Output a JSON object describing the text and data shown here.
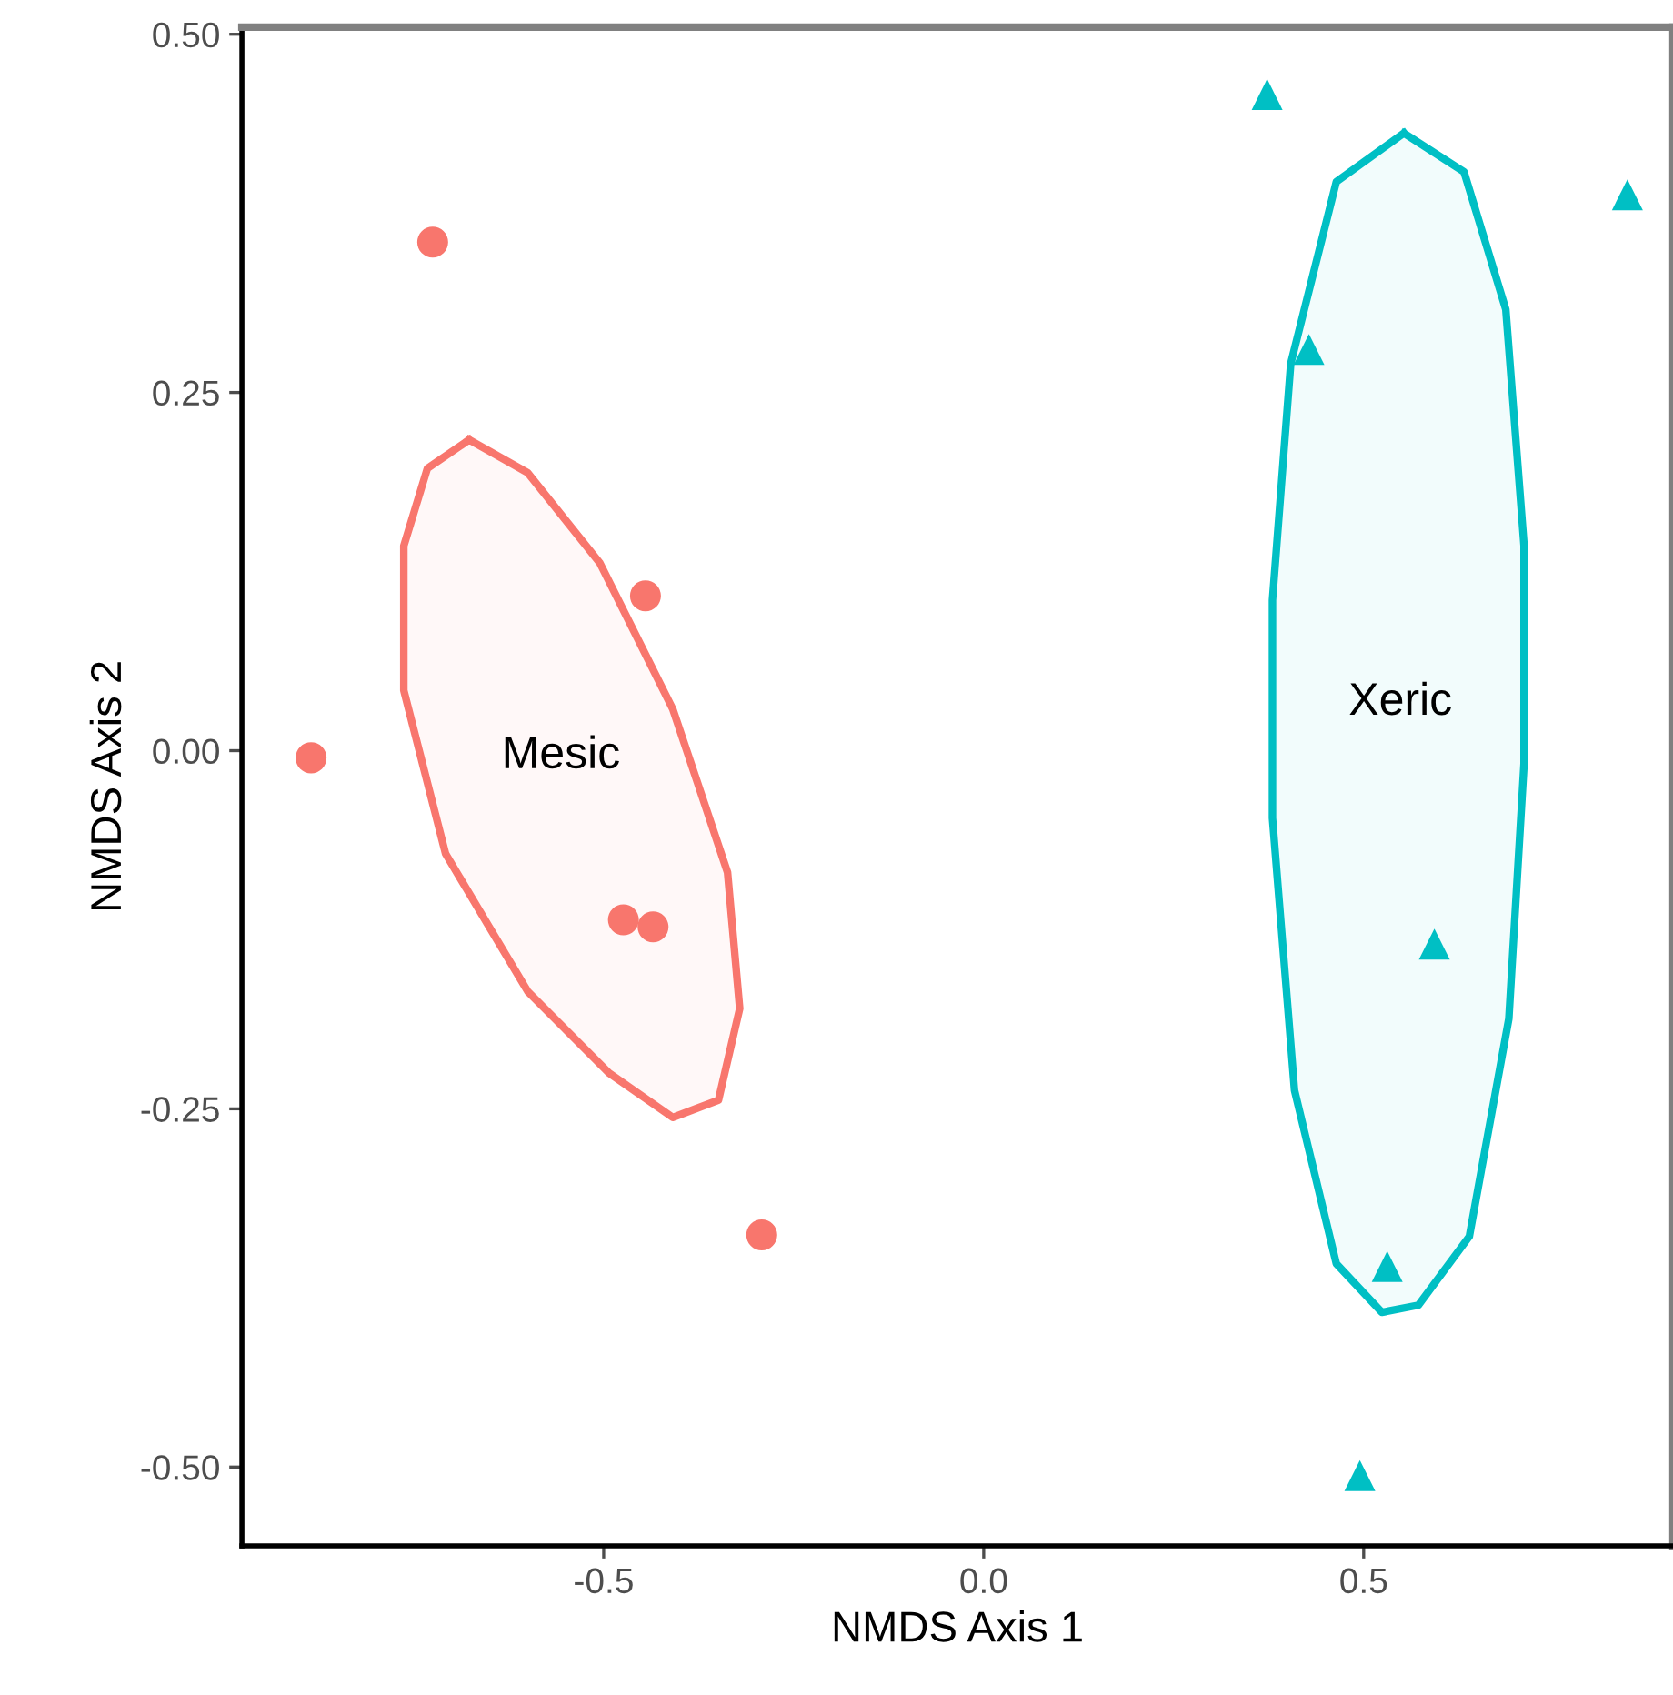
{
  "chart_data": {
    "type": "scatter",
    "xlabel": "NMDS Axis 1",
    "ylabel": "NMDS Axis 2",
    "xlim": [
      -0.976,
      0.907
    ],
    "ylim": [
      -0.555,
      0.505
    ],
    "xticks": [
      {
        "value": -0.5,
        "label": "-0.5"
      },
      {
        "value": 0.0,
        "label": "0.0"
      },
      {
        "value": 0.5,
        "label": "0.5"
      }
    ],
    "yticks": [
      {
        "value": -0.5,
        "label": "-0.50"
      },
      {
        "value": -0.25,
        "label": "-0.25"
      },
      {
        "value": 0.0,
        "label": "0.00"
      },
      {
        "value": 0.25,
        "label": "0.25"
      },
      {
        "value": 0.5,
        "label": "0.50"
      }
    ],
    "grid": false,
    "legend": false,
    "series": [
      {
        "marker": "circle",
        "color": "#f8766d",
        "x": [
          -0.725,
          -0.885,
          -0.445,
          -0.474,
          -0.435,
          -0.292
        ],
        "values": [
          0.355,
          -0.005,
          0.108,
          -0.118,
          -0.123,
          -0.338
        ]
      },
      {
        "marker": "triangle",
        "color": "#00bfc4",
        "x": [
          0.373,
          0.847,
          0.428,
          0.593,
          0.531,
          0.495
        ],
        "values": [
          0.458,
          0.388,
          0.28,
          -0.135,
          -0.36,
          -0.506
        ]
      },
      {
        "type": "area",
        "name": "Mesic",
        "color": "#f8766d",
        "x": [
          -0.677,
          -0.6,
          -0.505,
          -0.409,
          -0.337,
          -0.321,
          -0.349,
          -0.409,
          -0.493,
          -0.6,
          -0.708,
          -0.763,
          -0.763,
          -0.732,
          -0.677
        ],
        "values": [
          0.217,
          0.194,
          0.131,
          0.029,
          -0.085,
          -0.18,
          -0.244,
          -0.256,
          -0.225,
          -0.168,
          -0.072,
          0.042,
          0.143,
          0.197,
          0.217
        ]
      },
      {
        "type": "area",
        "name": "Xeric",
        "color": "#00bfc4",
        "x": [
          0.553,
          0.632,
          0.687,
          0.711,
          0.711,
          0.691,
          0.639,
          0.572,
          0.524,
          0.464,
          0.409,
          0.38,
          0.38,
          0.404,
          0.464,
          0.553
        ],
        "values": [
          0.431,
          0.404,
          0.308,
          0.143,
          -0.009,
          -0.187,
          -0.339,
          -0.387,
          -0.392,
          -0.358,
          -0.237,
          -0.047,
          0.105,
          0.27,
          0.397,
          0.431
        ]
      }
    ]
  }
}
